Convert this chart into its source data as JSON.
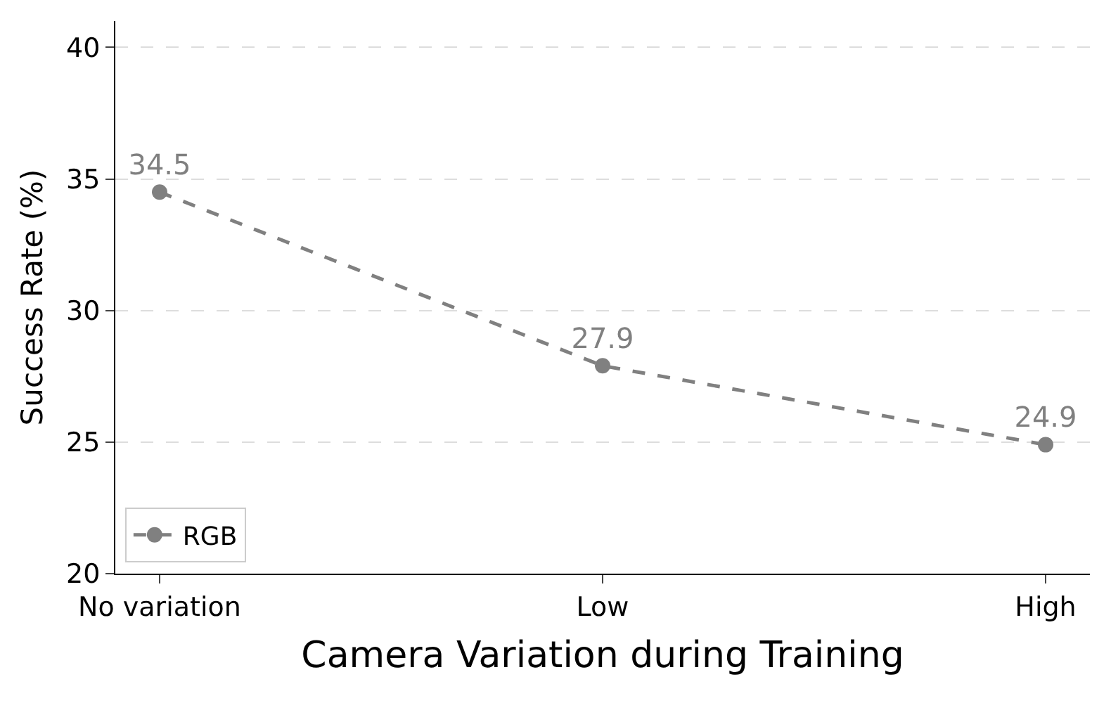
{
  "chart_data": {
    "type": "line",
    "xlabel": "Camera Variation during Training",
    "ylabel": "Success Rate (%)",
    "categories": [
      "No variation",
      "Low",
      "High"
    ],
    "series": [
      {
        "name": "RGB",
        "color": "#808080",
        "values": [
          34.5,
          27.9,
          24.9
        ]
      }
    ],
    "ylim": [
      20,
      41
    ],
    "yticks": [
      20,
      25,
      30,
      35,
      40
    ],
    "grid": "y",
    "legend": "bottom left",
    "marker": "circle",
    "line_style": "dashed",
    "data_labels": true
  }
}
